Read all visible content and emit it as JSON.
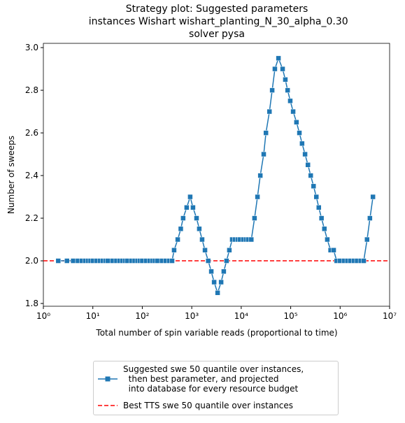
{
  "chart_data": {
    "type": "line",
    "title": "Strategy plot: Suggested parameters\n instances Wishart wishart_planting_N_30_alpha_0.30\nsolver pysa",
    "x_label": "Total number of spin variable reads (proportional to time)",
    "y_label": "Number of sweeps",
    "x_log": true,
    "x": [
      2,
      3,
      4,
      5,
      6,
      7,
      8,
      9,
      10,
      12,
      14,
      16,
      18,
      20,
      25,
      30,
      35,
      40,
      45,
      50,
      60,
      70,
      80,
      90,
      100,
      120,
      140,
      160,
      180,
      200,
      250,
      300,
      350,
      400,
      440,
      520,
      600,
      670,
      790,
      930,
      1060,
      1250,
      1420,
      1620,
      1850,
      2150,
      2480,
      2830,
      3330,
      3920,
      4440,
      5060,
      5760,
      6570,
      7500,
      8500,
      9500,
      11000,
      12500,
      14000,
      16000,
      18600,
      21300,
      24300,
      28500,
      31600,
      37200,
      42200,
      47900,
      56600,
      68700,
      78000,
      86600,
      98000,
      112000,
      131000,
      150000,
      170000,
      195000,
      223000,
      254000,
      290000,
      330000,
      370000,
      420000,
      480000,
      550000,
      640000,
      740000,
      850000,
      1000000,
      1200000,
      1400000,
      1600000,
      1900000,
      2200000,
      2600000,
      3000000,
      3500000,
      4000000,
      4600000
    ],
    "series": [
      {
        "name": "Suggested swe 50 quantile over instances,\n  then best parameter, and projected\n  into database for every resource budget",
        "color": "#1f77b4",
        "values": [
          2,
          2,
          2,
          2,
          2,
          2,
          2,
          2,
          2,
          2,
          2,
          2,
          2,
          2,
          2,
          2,
          2,
          2,
          2,
          2,
          2,
          2,
          2,
          2,
          2,
          2,
          2,
          2,
          2,
          2,
          2,
          2,
          2,
          2,
          2.05,
          2.1,
          2.15,
          2.2,
          2.25,
          2.3,
          2.25,
          2.2,
          2.15,
          2.1,
          2.05,
          2,
          1.95,
          1.9,
          1.85,
          1.9,
          1.95,
          2,
          2.05,
          2.1,
          2.1,
          2.1,
          2.1,
          2.1,
          2.1,
          2.1,
          2.1,
          2.2,
          2.3,
          2.4,
          2.5,
          2.6,
          2.7,
          2.8,
          2.9,
          2.95,
          2.9,
          2.85,
          2.8,
          2.75,
          2.7,
          2.65,
          2.6,
          2.55,
          2.5,
          2.45,
          2.4,
          2.35,
          2.3,
          2.25,
          2.2,
          2.15,
          2.1,
          2.05,
          2.05,
          2,
          2,
          2,
          2,
          2,
          2,
          2,
          2,
          2,
          2.1,
          2.2,
          2.3
        ]
      }
    ],
    "hline": {
      "name": "Best TTS swe 50 quantile over instances",
      "value": 2,
      "color": "#ff0000"
    },
    "xlim": [
      1,
      10000000
    ],
    "xticks": [
      {
        "value": 1,
        "label": "10⁰"
      },
      {
        "value": 10,
        "label": "10¹"
      },
      {
        "value": 100,
        "label": "10²"
      },
      {
        "value": 1000,
        "label": "10³"
      },
      {
        "value": 10000,
        "label": "10⁴"
      },
      {
        "value": 100000,
        "label": "10⁵"
      },
      {
        "value": 1000000,
        "label": "10⁶"
      },
      {
        "value": 10000000,
        "label": "10⁷"
      }
    ],
    "ylim": [
      1.787,
      3.02
    ],
    "yticks": [
      1.8,
      {
        "value": 2,
        "label": "2.0"
      },
      2.2,
      2.4,
      2.6,
      2.8,
      {
        "value": 3,
        "label": "3.0"
      }
    ],
    "legend": "lower center"
  }
}
